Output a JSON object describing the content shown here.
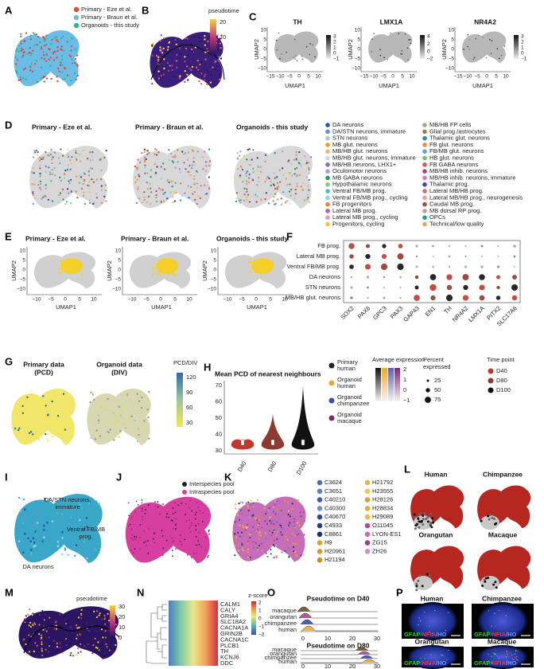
{
  "panels": {
    "A": {
      "label": "A",
      "legend": [
        {
          "text": "Primary - Eze et al.",
          "color": "#e8463a"
        },
        {
          "text": "Primary - Braun et al.",
          "color": "#6bbde8"
        },
        {
          "text": "Organoids - this study",
          "color": "#2fb58f"
        }
      ]
    },
    "B": {
      "label": "B",
      "scale_title": "pseudotime",
      "scale_ticks": [
        "20",
        "10",
        "0"
      ]
    },
    "C": {
      "label": "C",
      "plots": [
        {
          "title": "TH",
          "scale_ticks": [
            "3",
            "2",
            "1",
            "0",
            "−1"
          ]
        },
        {
          "title": "LMX1A",
          "scale_ticks": [
            "4",
            "2",
            "0",
            "−2"
          ]
        },
        {
          "title": "NR4A2",
          "scale_ticks": [
            "3",
            "2",
            "1",
            "0",
            "−1"
          ]
        }
      ],
      "x_ticks": [
        "−15",
        "−10",
        "−5",
        "0",
        "5",
        "10"
      ],
      "y_ticks": [
        "10",
        "5",
        "0",
        "−5",
        "−10"
      ],
      "x_label": "UMAP1",
      "y_label": "UMAP2"
    },
    "D": {
      "label": "D",
      "titles": [
        "Primary - Eze et al.",
        "Primary - Braun et al.",
        "Organoids - this study"
      ],
      "legend": [
        {
          "text": "DA neurons",
          "color": "#2b57a8"
        },
        {
          "text": "DA/STN neurons, immature",
          "color": "#6a8fd0"
        },
        {
          "text": "STN neurons",
          "color": "#a9c4ea"
        },
        {
          "text": "MB glut. neurons",
          "color": "#f39c2e"
        },
        {
          "text": "MB/HB glut. neurons",
          "color": "#f6b968"
        },
        {
          "text": "MB/HB glut. neurons, immature",
          "color": "#c7d9ee"
        },
        {
          "text": "MB/HB neurons, LHX1+",
          "color": "#8b6bb5"
        },
        {
          "text": "Oculomotor neurons",
          "color": "#b39ad6"
        },
        {
          "text": "MB GABA neurons",
          "color": "#2e9a5a"
        },
        {
          "text": "Hypothalamic neurons",
          "color": "#7fc98f"
        },
        {
          "text": "Ventral FB/MB prog.",
          "color": "#3fc1c9"
        },
        {
          "text": "Ventral FB/MB prog., cycling",
          "color": "#8ad9de"
        },
        {
          "text": "FB progenitors",
          "color": "#e8843b"
        },
        {
          "text": "Lateral MB prog.",
          "color": "#c25e8c"
        },
        {
          "text": "Lateral MB prog., cycling",
          "color": "#e59bbd"
        },
        {
          "text": "Progenitors, cycling",
          "color": "#f5c243"
        },
        {
          "text": "MB/HB FP cells",
          "color": "#b0a18c"
        },
        {
          "text": "Glial prog./astrocytes",
          "color": "#9e7b52"
        },
        {
          "text": "Thalamic glut. neurons",
          "color": "#3e7fbd"
        },
        {
          "text": "FB glut. neurons",
          "color": "#f08a4b"
        },
        {
          "text": "FB/MB glut. neurons",
          "color": "#5aa5d8"
        },
        {
          "text": "HB glut. neurons",
          "color": "#7bbf6a"
        },
        {
          "text": "FB GABA neurons",
          "color": "#d9534f"
        },
        {
          "text": "MB/HB inhib. neurons",
          "color": "#a34a8f"
        },
        {
          "text": "MB/HB inhib. neurons, immature",
          "color": "#c77fb7"
        },
        {
          "text": "Thalamic prog.",
          "color": "#5e3c99"
        },
        {
          "text": "Lateral MB/HB prog.",
          "color": "#d46a6a"
        },
        {
          "text": "Lateral MB/HB prog., neurogenesis",
          "color": "#e7a1a1"
        },
        {
          "text": "Caudal MB prog.",
          "color": "#8c564b"
        },
        {
          "text": "MB dorsal RP prog.",
          "color": "#c49c94"
        },
        {
          "text": "OPCs",
          "color": "#1f9e89"
        },
        {
          "text": "Technical/low quality",
          "color": "#d9a86c"
        }
      ]
    },
    "E": {
      "label": "E",
      "titles": [
        "Primary - Eze et al.",
        "Primary - Braun et al.",
        "Organoids - this study"
      ],
      "x_ticks": [
        "−10",
        "−5",
        "0",
        "5",
        "10"
      ],
      "y_ticks": [
        "10",
        "5",
        "0",
        "−5",
        "−10"
      ],
      "x_label": "UMAP1",
      "y_label": "UMAP2"
    },
    "F": {
      "label": "F",
      "rows": [
        "FB prog.",
        "Lateral MB prog.",
        "Ventral FB/MB prog.",
        "DA neurons",
        "STN neurons",
        "MB/HB glut. neurons"
      ],
      "columns": [
        "SOX2",
        "PAX6",
        "GPC3",
        "PAX3",
        "GAP43",
        "EN1",
        "TH",
        "NR4A2",
        "LMX1A",
        "PITX2",
        "SLC17A6"
      ]
    },
    "G": {
      "label": "G",
      "titles": [
        [
          "Primary data",
          "(PCD)"
        ],
        [
          "Organoid data",
          "(DIV)"
        ]
      ],
      "scale_title": "PCD/DIV",
      "scale_ticks": [
        "120",
        "90",
        "60",
        "30"
      ]
    },
    "H": {
      "label": "H",
      "title": "Mean PCD of nearest neighbours",
      "y_ticks": [
        "70",
        "60",
        "50",
        "40",
        "30"
      ],
      "x_ticks": [
        "D40",
        "D80",
        "D100"
      ],
      "legend": [
        {
          "text": [
            "Primary",
            "human"
          ],
          "color": "#222222"
        },
        {
          "text": [
            "Organoid",
            "human"
          ],
          "color": "#f0a830"
        },
        {
          "text": [
            "Organoid",
            "chimpanzee"
          ],
          "color": "#3a4fa8"
        },
        {
          "text": [
            "Organoid",
            "macaque"
          ],
          "color": "#7b2a6e"
        }
      ],
      "avg_title": "Average expression",
      "avg_ticks": [
        "2",
        "1",
        "0",
        "−1"
      ],
      "pct_title": [
        "Percent",
        "expressed"
      ],
      "pct_ticks": [
        "25",
        "50",
        "75"
      ],
      "time_title": "Time point",
      "time_points": [
        {
          "text": "D40",
          "color": "#c0392b"
        },
        {
          "text": "D80",
          "color": "#8e3a2e"
        },
        {
          "text": "D100",
          "color": "#111111"
        }
      ]
    },
    "I": {
      "label": "I",
      "annotations": [
        "DA/STN neurons,",
        "immature",
        "Ventral FB/MB",
        "prog.",
        "DA neurons"
      ]
    },
    "J": {
      "label": "J",
      "legend": [
        {
          "text": "Interspecies pool",
          "color": "#222222"
        },
        {
          "text": "Intraspecies pool",
          "color": "#d63fa0"
        }
      ]
    },
    "K": {
      "label": "K",
      "legend": [
        {
          "text": "C3624",
          "color": "#4a6fb5"
        },
        {
          "text": "C3651",
          "color": "#5b82c4"
        },
        {
          "text": "C40210",
          "color": "#3c5ca8"
        },
        {
          "text": "C40300",
          "color": "#6f93d0"
        },
        {
          "text": "C40670",
          "color": "#2f4a95"
        },
        {
          "text": "C4933",
          "color": "#273d85"
        },
        {
          "text": "C8861",
          "color": "#1e3072"
        },
        {
          "text": "H9",
          "color": "#e0a22a"
        },
        {
          "text": "H20961",
          "color": "#d99a2b"
        },
        {
          "text": "H21194",
          "color": "#c98b2a"
        },
        {
          "text": "H21792",
          "color": "#e7b54a"
        },
        {
          "text": "H23555",
          "color": "#f0c25a"
        },
        {
          "text": "H28126",
          "color": "#d8a040"
        },
        {
          "text": "H28834",
          "color": "#e6ad35"
        },
        {
          "text": "H29089",
          "color": "#f2b93c"
        },
        {
          "text": "O11045",
          "color": "#b04a9a"
        },
        {
          "text": "LYON-ES1",
          "color": "#c86bb8"
        },
        {
          "text": "ZG15",
          "color": "#9a3d92"
        },
        {
          "text": "ZH26",
          "color": "#d88ad0"
        }
      ]
    },
    "L": {
      "label": "L",
      "titles": [
        "Human",
        "Chimpanzee",
        "Orangutan",
        "Macaque"
      ]
    },
    "M": {
      "label": "M",
      "scale_title": "pseudotime",
      "scale_ticks": [
        "30",
        "20",
        "10",
        "0"
      ]
    },
    "N": {
      "label": "N",
      "scale_title": "z-score",
      "scale_ticks": [
        "2",
        "1",
        "0",
        "−1",
        "−2"
      ],
      "genes": [
        "CALM1",
        "CALY",
        "GRIA4",
        "SLC18A2",
        "CACNA1A",
        "GRIN2B",
        "CACNA1C",
        "PLCB1",
        "TH",
        "KCNJ6",
        "DDC"
      ]
    },
    "O": {
      "label": "O",
      "plots": [
        {
          "title": "Pseudotime on D40"
        },
        {
          "title": "Pseudotime on D80"
        }
      ],
      "species": [
        "macaque",
        "orangutan",
        "chimpanzee",
        "human"
      ],
      "x_ticks": [
        "0",
        "10",
        "20",
        "30"
      ]
    },
    "P": {
      "label": "P",
      "titles": [
        "Human",
        "Chimpanzee",
        "Orangutan",
        "Macaque"
      ],
      "stain": [
        {
          "text": "GFAP",
          "color": "#33cc33"
        },
        {
          "text": "/NFIA",
          "color": "#ee3333"
        },
        {
          "text": "/HO",
          "color": "#6699ff"
        }
      ]
    }
  }
}
